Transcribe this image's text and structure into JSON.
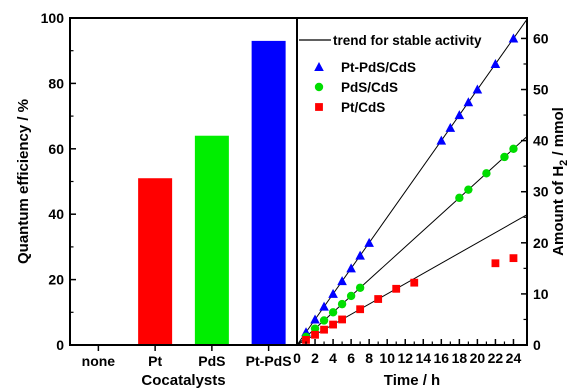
{
  "chart_data": [
    {
      "type": "bar",
      "xlabel": "Cocatalysts",
      "ylabel": "Quantum efficiency / %",
      "ylim": [
        0,
        100
      ],
      "yticks": [
        0,
        20,
        40,
        60,
        80,
        100
      ],
      "categories": [
        "none",
        "Pt",
        "PdS",
        "Pt-PdS"
      ],
      "values": [
        0,
        51,
        64,
        93
      ],
      "colors": [
        "#ffffff",
        "#ff0000",
        "#00ee00",
        "#0000ff"
      ]
    },
    {
      "type": "scatter",
      "xlabel": "Time / h",
      "ylabel_prefix": "Amount of H",
      "ylabel_sub": "2",
      "ylabel_suffix": " / mmol",
      "xlim": [
        0,
        25.5
      ],
      "ylim": [
        0,
        64
      ],
      "xticks": [
        0,
        2,
        4,
        6,
        8,
        10,
        12,
        14,
        16,
        18,
        20,
        22,
        24
      ],
      "yticks": [
        0,
        10,
        20,
        30,
        40,
        50,
        60
      ],
      "legend_placement": "top-right",
      "trend_label": "trend for stable activity",
      "series": [
        {
          "name": "Pt-PdS/CdS",
          "color": "#0000ff",
          "marker": "triangle",
          "x": [
            1,
            2,
            3,
            4,
            5,
            6,
            7,
            8,
            16,
            17,
            18,
            19,
            20,
            22,
            24
          ],
          "y": [
            2.5,
            5,
            7.5,
            10,
            12.5,
            15,
            17.5,
            20,
            40,
            42.5,
            45,
            47.5,
            50,
            55,
            60
          ],
          "trend_slope": 2.5
        },
        {
          "name": "PdS/CdS",
          "color": "#00dd00",
          "marker": "circle",
          "x": [
            1,
            2,
            3,
            4,
            5,
            6,
            7,
            18,
            19,
            21,
            23,
            24
          ],
          "y": [
            1.6,
            3.2,
            4.8,
            6.4,
            8,
            9.6,
            11.2,
            28.8,
            30.4,
            33.6,
            36.8,
            38.4
          ],
          "trend_slope": 1.6
        },
        {
          "name": "Pt/CdS",
          "color": "#ff0000",
          "marker": "square",
          "x": [
            1,
            2,
            3,
            4,
            5,
            7,
            9,
            11,
            13,
            22,
            24
          ],
          "y": [
            1.0,
            2.0,
            3.0,
            4.0,
            5.0,
            7.0,
            9.0,
            11.0,
            12.2,
            16.0,
            17.0
          ],
          "trend_slope": 1.0
        }
      ]
    }
  ]
}
